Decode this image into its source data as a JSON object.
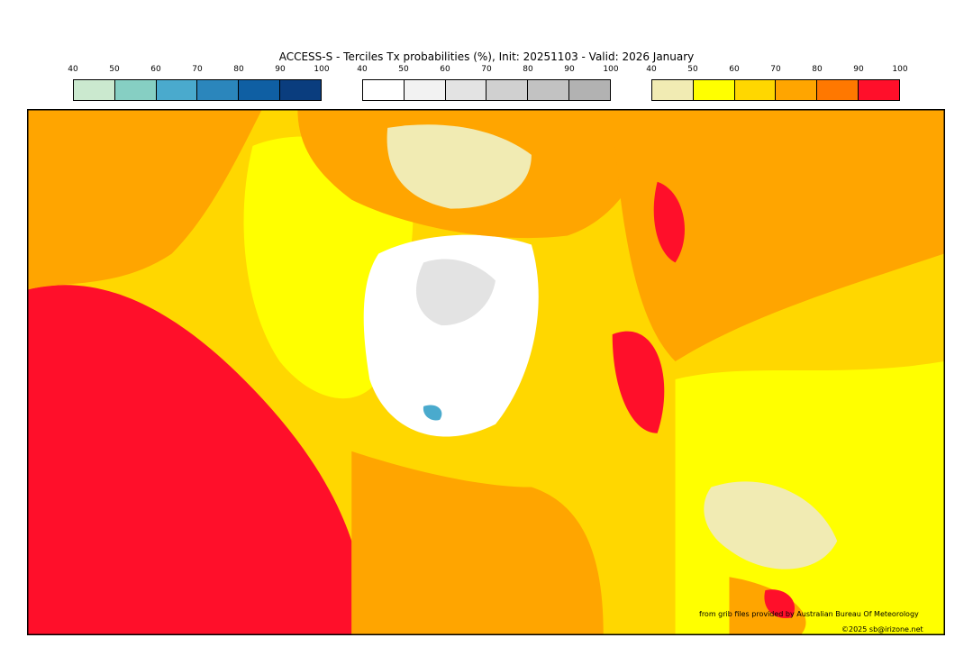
{
  "title": "ACCESS-S - Terciles Tx probabilities (%), Init: 20251103 - Valid: 2026 January",
  "colorbars": [
    {
      "name": "below",
      "ticks": [
        "40",
        "50",
        "60",
        "70",
        "80",
        "90",
        "100"
      ],
      "colors": [
        "#cbe9cf",
        "#86cfc3",
        "#4aaacd",
        "#2b86bc",
        "#0f5fa3",
        "#0a3d7e"
      ]
    },
    {
      "name": "normal",
      "ticks": [
        "40",
        "50",
        "60",
        "70",
        "80",
        "90",
        "100"
      ],
      "colors": [
        "#ffffff",
        "#f2f2f2",
        "#e3e3e3",
        "#d0d0d0",
        "#c2c2c2",
        "#b2b2b2"
      ]
    },
    {
      "name": "above",
      "ticks": [
        "40",
        "50",
        "60",
        "70",
        "80",
        "90",
        "100"
      ],
      "colors": [
        "#f1ebb3",
        "#ffff00",
        "#ffd700",
        "#ffa500",
        "#ff7800",
        "#ff0f2a"
      ]
    }
  ],
  "credit1": "from grib files provided by Australian Bureau Of Meteorology",
  "credit2": "©2025 sb@irizone.net"
}
